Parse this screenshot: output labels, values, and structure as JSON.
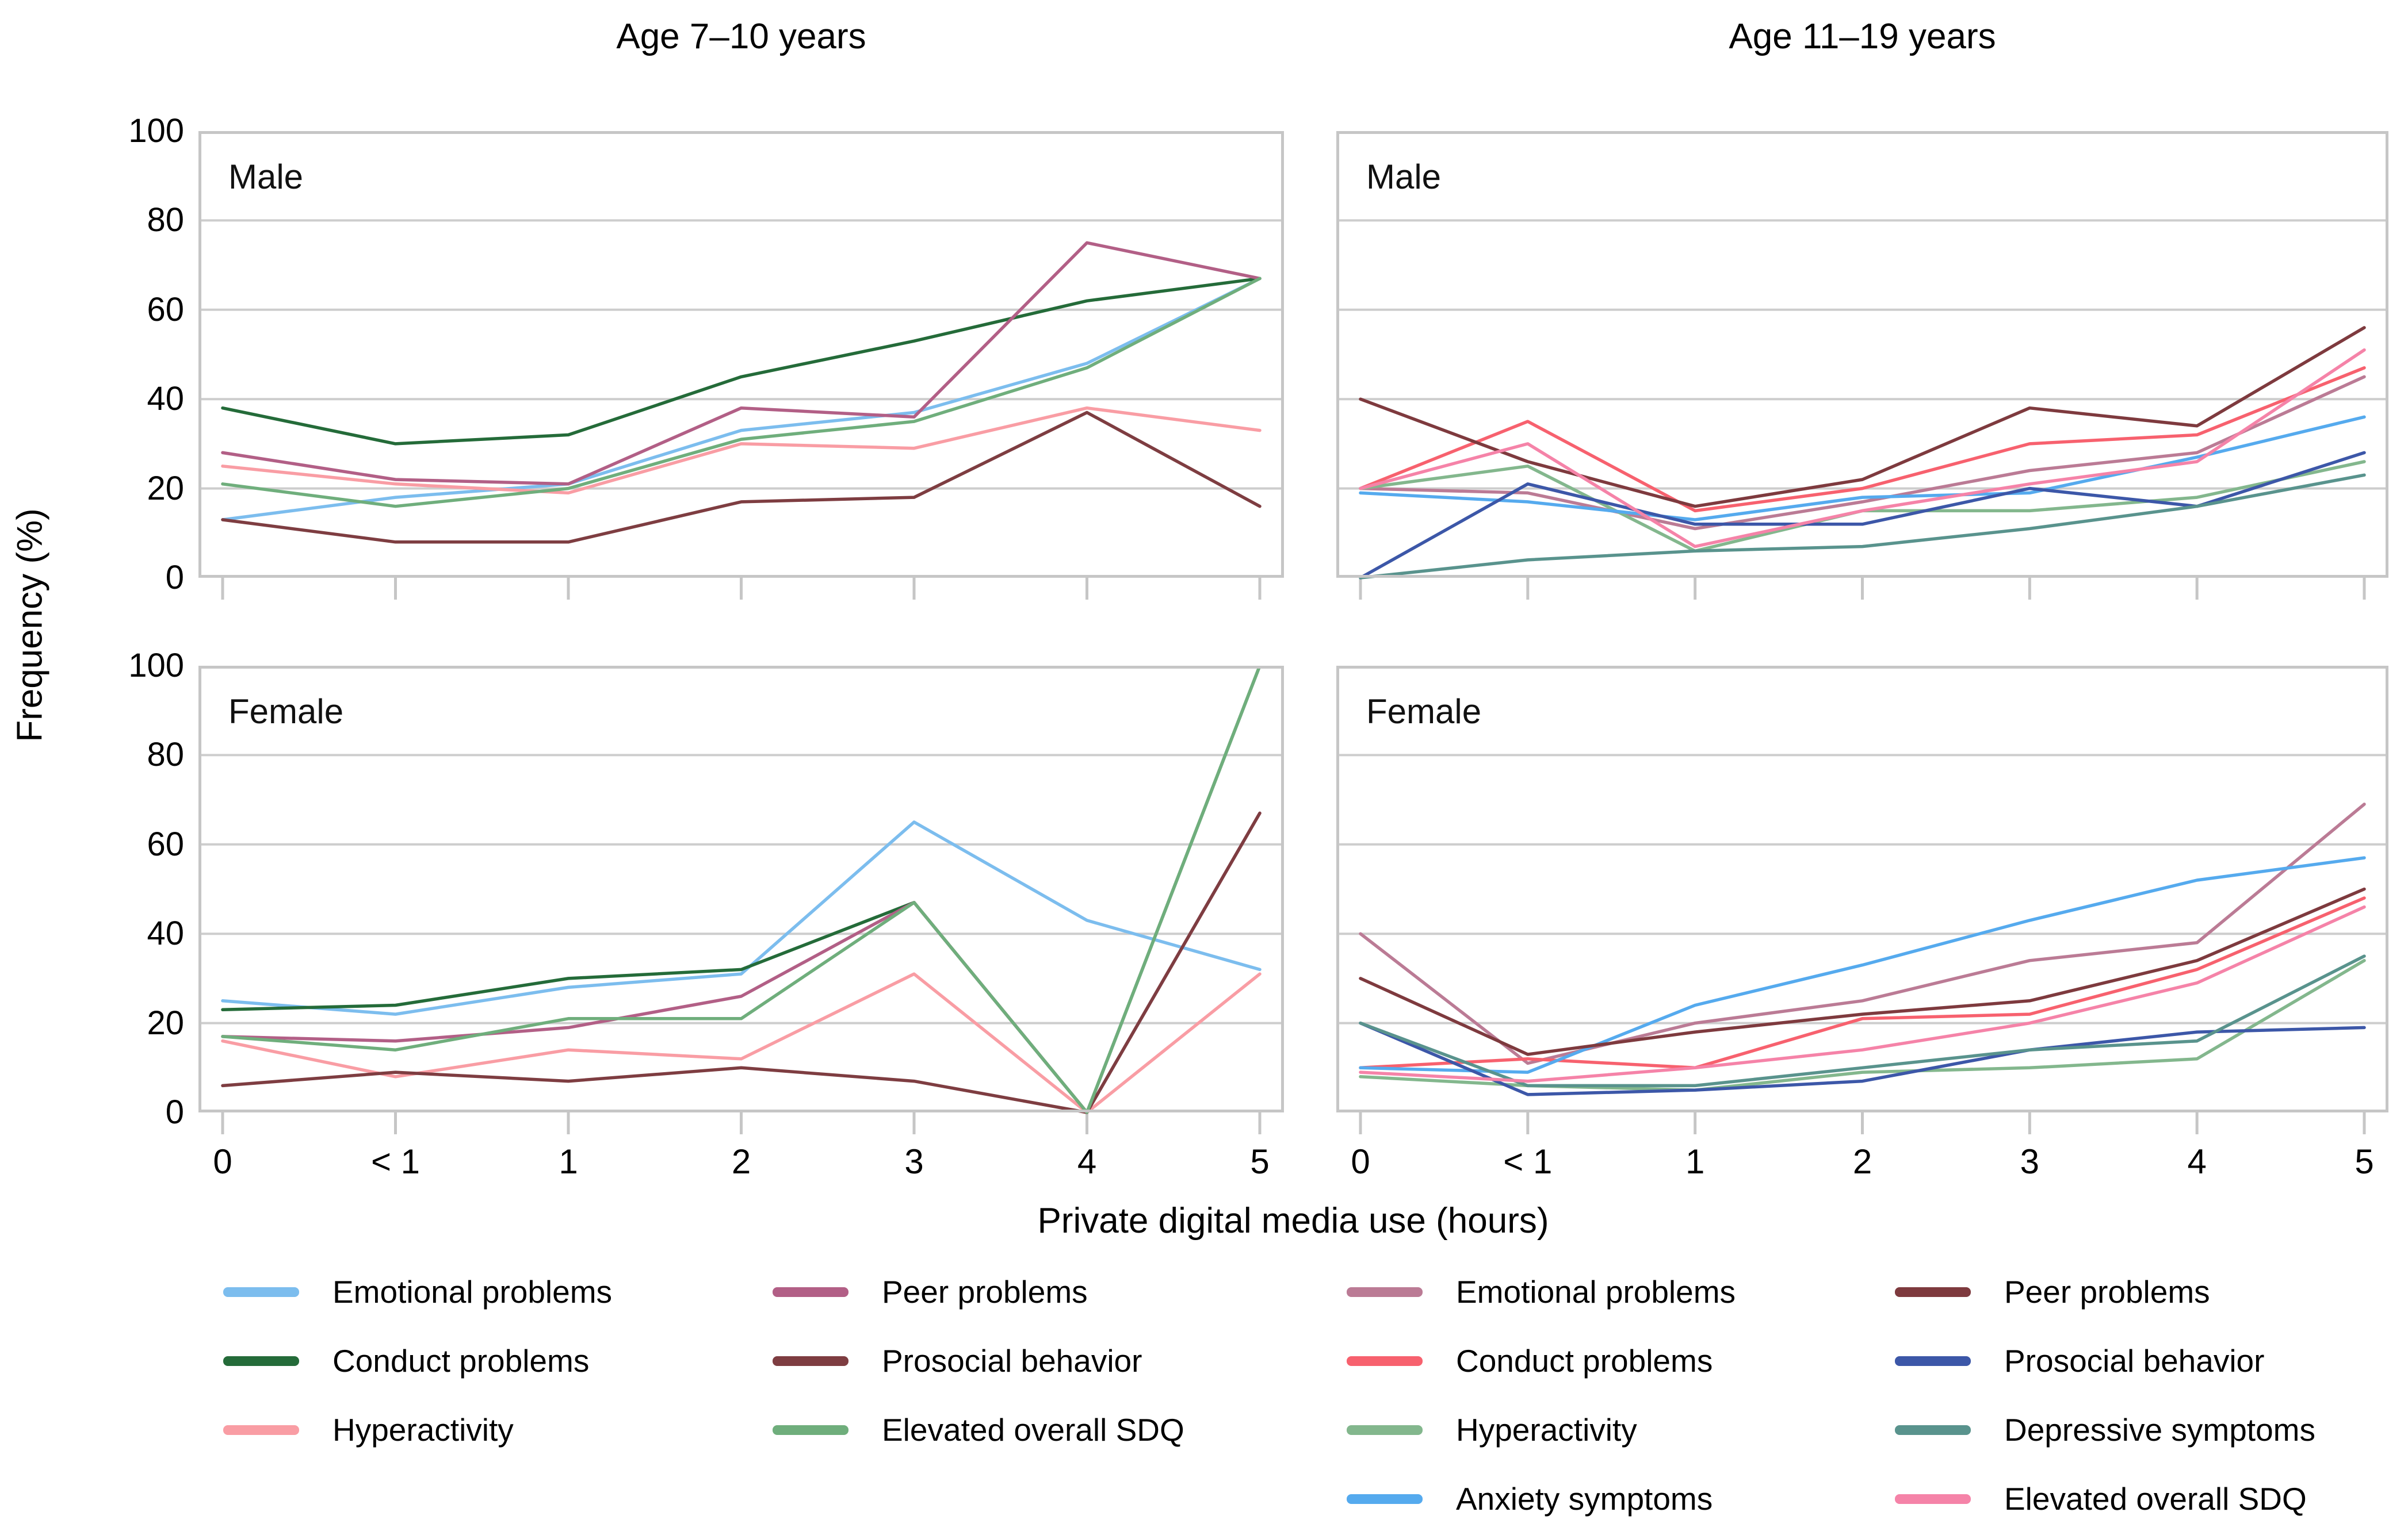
{
  "figure": {
    "column_titles": [
      "Age 7–10 years",
      "Age 11–19 years"
    ],
    "ylabel": "Frequency (%)",
    "xlabel": "Private digital media use (hours)"
  },
  "chart_data": [
    {
      "type": "line",
      "panel": "male-age-7-10",
      "row_label": "Male",
      "title": "Age 7–10 years",
      "categories": [
        "0",
        "< 1",
        "1",
        "2",
        "3",
        "4",
        "5"
      ],
      "ylim": [
        0,
        100
      ],
      "yticks": [
        0,
        20,
        40,
        60,
        80,
        100
      ],
      "grid": "horizontal",
      "series": [
        {
          "name": "Emotional problems",
          "color": "#7cbdee",
          "values": [
            13,
            18,
            21,
            33,
            37,
            48,
            67
          ]
        },
        {
          "name": "Conduct problems",
          "color": "#246b39",
          "values": [
            38,
            30,
            32,
            45,
            53,
            62,
            67
          ]
        },
        {
          "name": "Hyperactivity",
          "color": "#f99da4",
          "values": [
            25,
            21,
            19,
            30,
            29,
            38,
            33
          ]
        },
        {
          "name": "Peer problems",
          "color": "#b25f86",
          "values": [
            28,
            22,
            21,
            38,
            36,
            75,
            67
          ]
        },
        {
          "name": "Prosocial behavior",
          "color": "#7e3d41",
          "values": [
            13,
            8,
            8,
            17,
            18,
            37,
            16
          ]
        },
        {
          "name": "Elevated overall SDQ",
          "color": "#6fae7c",
          "values": [
            21,
            16,
            20,
            31,
            35,
            47,
            67
          ]
        }
      ]
    },
    {
      "type": "line",
      "panel": "male-age-11-19",
      "row_label": "Male",
      "title": "Age 11–19 years",
      "categories": [
        "0",
        "< 1",
        "1",
        "2",
        "3",
        "4",
        "5"
      ],
      "ylim": [
        0,
        100
      ],
      "yticks": [
        0,
        20,
        40,
        60,
        80,
        100
      ],
      "grid": "horizontal",
      "series": [
        {
          "name": "Emotional problems",
          "color": "#bb7b95",
          "values": [
            20,
            19,
            11,
            17,
            24,
            28,
            45
          ]
        },
        {
          "name": "Conduct problems",
          "color": "#f7616e",
          "values": [
            20,
            35,
            15,
            20,
            30,
            32,
            47
          ]
        },
        {
          "name": "Hyperactivity",
          "color": "#83b78d",
          "values": [
            20,
            25,
            6,
            15,
            15,
            18,
            26
          ]
        },
        {
          "name": "Anxiety symptoms",
          "color": "#55aaee",
          "values": [
            19,
            17,
            13,
            18,
            19,
            27,
            36
          ]
        },
        {
          "name": "Peer problems",
          "color": "#7e3a3e",
          "values": [
            40,
            26,
            16,
            22,
            38,
            34,
            56
          ]
        },
        {
          "name": "Prosocial behavior",
          "color": "#3c57a8",
          "values": [
            0,
            21,
            12,
            12,
            20,
            16,
            28
          ]
        },
        {
          "name": "Depressive symptoms",
          "color": "#59938d",
          "values": [
            0,
            4,
            6,
            7,
            11,
            16,
            23
          ]
        },
        {
          "name": "Elevated overall SDQ",
          "color": "#f583a8",
          "values": [
            20,
            30,
            7,
            15,
            21,
            26,
            51
          ]
        }
      ]
    },
    {
      "type": "line",
      "panel": "female-age-7-10",
      "row_label": "Female",
      "title": "Age 7–10 years",
      "categories": [
        "0",
        "< 1",
        "1",
        "2",
        "3",
        "4",
        "5"
      ],
      "ylim": [
        0,
        100
      ],
      "yticks": [
        0,
        20,
        40,
        60,
        80,
        100
      ],
      "grid": "horizontal",
      "series": [
        {
          "name": "Emotional problems",
          "color": "#7cbdee",
          "values": [
            25,
            22,
            28,
            31,
            65,
            43,
            32
          ]
        },
        {
          "name": "Conduct problems",
          "color": "#246b39",
          "values": [
            23,
            24,
            30,
            32,
            47,
            0,
            100
          ]
        },
        {
          "name": "Hyperactivity",
          "color": "#f99da4",
          "values": [
            16,
            8,
            14,
            12,
            31,
            0,
            31
          ]
        },
        {
          "name": "Peer problems",
          "color": "#b25f86",
          "values": [
            17,
            16,
            19,
            26,
            47,
            0,
            67
          ]
        },
        {
          "name": "Prosocial behavior",
          "color": "#7e3d41",
          "values": [
            6,
            9,
            7,
            10,
            7,
            0,
            67
          ]
        },
        {
          "name": "Elevated overall SDQ",
          "color": "#6fae7c",
          "values": [
            17,
            14,
            21,
            21,
            47,
            0,
            100
          ]
        }
      ]
    },
    {
      "type": "line",
      "panel": "female-age-11-19",
      "row_label": "Female",
      "title": "Age 11–19 years",
      "categories": [
        "0",
        "< 1",
        "1",
        "2",
        "3",
        "4",
        "5"
      ],
      "ylim": [
        0,
        100
      ],
      "yticks": [
        0,
        20,
        40,
        60,
        80,
        100
      ],
      "grid": "horizontal",
      "series": [
        {
          "name": "Emotional problems",
          "color": "#bb7b95",
          "values": [
            40,
            11,
            20,
            25,
            34,
            38,
            69
          ]
        },
        {
          "name": "Conduct problems",
          "color": "#f7616e",
          "values": [
            10,
            12,
            10,
            21,
            22,
            32,
            48
          ]
        },
        {
          "name": "Hyperactivity",
          "color": "#83b78d",
          "values": [
            8,
            6,
            5,
            9,
            10,
            12,
            34
          ]
        },
        {
          "name": "Anxiety symptoms",
          "color": "#55aaee",
          "values": [
            10,
            9,
            24,
            33,
            43,
            52,
            57
          ]
        },
        {
          "name": "Peer problems",
          "color": "#7e3a3e",
          "values": [
            30,
            13,
            18,
            22,
            25,
            34,
            50
          ]
        },
        {
          "name": "Prosocial behavior",
          "color": "#3c57a8",
          "values": [
            20,
            4,
            5,
            7,
            14,
            18,
            19
          ]
        },
        {
          "name": "Depressive symptoms",
          "color": "#59938d",
          "values": [
            20,
            6,
            6,
            10,
            14,
            16,
            35
          ]
        },
        {
          "name": "Elevated overall SDQ",
          "color": "#f583a8",
          "values": [
            9,
            7,
            10,
            14,
            20,
            29,
            46
          ]
        }
      ]
    }
  ],
  "legends": [
    {
      "group": "age-7-10",
      "columns": [
        [
          {
            "label": "Emotional problems",
            "color": "#7cbdee"
          },
          {
            "label": "Conduct problems",
            "color": "#246b39"
          },
          {
            "label": "Hyperactivity",
            "color": "#f99da4"
          }
        ],
        [
          {
            "label": "Peer problems",
            "color": "#b25f86"
          },
          {
            "label": "Prosocial behavior",
            "color": "#7e3d41"
          },
          {
            "label": "Elevated overall SDQ",
            "color": "#6fae7c"
          }
        ]
      ]
    },
    {
      "group": "age-11-19",
      "columns": [
        [
          {
            "label": "Emotional problems",
            "color": "#bb7b95"
          },
          {
            "label": "Conduct problems",
            "color": "#f7616e"
          },
          {
            "label": "Hyperactivity",
            "color": "#83b78d"
          },
          {
            "label": "Anxiety symptoms",
            "color": "#55aaee"
          }
        ],
        [
          {
            "label": "Peer problems",
            "color": "#7e3a3e"
          },
          {
            "label": "Prosocial behavior",
            "color": "#3c57a8"
          },
          {
            "label": "Depressive symptoms",
            "color": "#59938d"
          },
          {
            "label": "Elevated overall SDQ",
            "color": "#f583a8"
          }
        ]
      ]
    }
  ],
  "style": {
    "panel_border_color": "#c6c6c6",
    "gridline_color": "#cdcdcd",
    "tick_color": "#c6c6c6"
  }
}
